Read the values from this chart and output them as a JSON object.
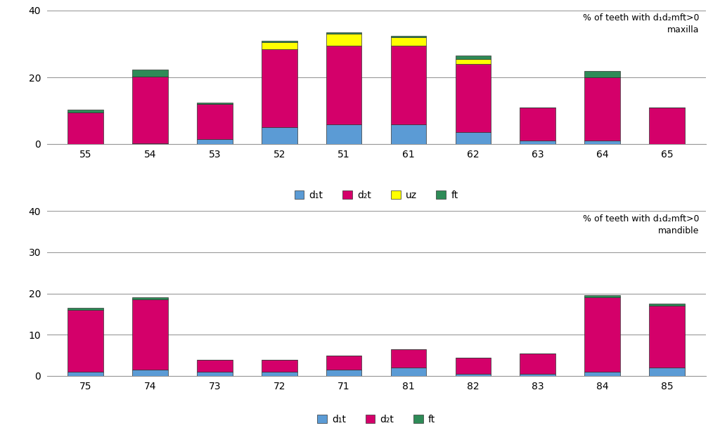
{
  "top": {
    "categories": [
      "55",
      "54",
      "53",
      "52",
      "51",
      "61",
      "62",
      "63",
      "64",
      "65"
    ],
    "d1t": [
      0.0,
      0.3,
      1.5,
      5.0,
      6.0,
      6.0,
      3.5,
      1.0,
      1.0,
      0.0
    ],
    "d2t": [
      9.5,
      20.0,
      10.5,
      23.5,
      23.5,
      23.5,
      20.5,
      10.0,
      19.0,
      11.0
    ],
    "uz": [
      0.0,
      0.0,
      0.0,
      2.0,
      3.5,
      2.5,
      1.5,
      0.0,
      0.0,
      0.0
    ],
    "ft": [
      0.8,
      2.0,
      0.5,
      0.5,
      0.5,
      0.5,
      1.0,
      0.0,
      2.0,
      0.0
    ],
    "ylim": [
      0,
      40
    ],
    "yticks": [
      0,
      20,
      40
    ],
    "annotation_line1": "% of teeth with d₁d₂mft>0",
    "annotation_line2": "maxilla",
    "legend": [
      "d₁t",
      "d₂t",
      "uz",
      "ft"
    ],
    "colors": {
      "d1t": "#5b9bd5",
      "d2t": "#d4006a",
      "uz": "#ffff00",
      "ft": "#2e8b57"
    }
  },
  "bottom": {
    "categories": [
      "75",
      "74",
      "73",
      "72",
      "71",
      "81",
      "82",
      "83",
      "84",
      "85"
    ],
    "d1t": [
      1.0,
      1.5,
      1.0,
      1.0,
      1.5,
      2.0,
      0.5,
      0.5,
      1.0,
      2.0
    ],
    "d2t": [
      15.0,
      17.0,
      3.0,
      3.0,
      3.5,
      4.5,
      4.0,
      5.0,
      18.0,
      15.0
    ],
    "ft": [
      0.5,
      0.5,
      0.0,
      0.0,
      0.0,
      0.0,
      0.0,
      0.0,
      0.5,
      0.5
    ],
    "ylim": [
      0,
      40
    ],
    "yticks": [
      0,
      10,
      20,
      30,
      40
    ],
    "annotation_line1": "% of teeth with d₁d₂mft>0",
    "annotation_line2": "mandible",
    "legend": [
      "d₁t",
      "d₂t",
      "ft"
    ],
    "colors": {
      "d1t": "#5b9bd5",
      "d2t": "#d4006a",
      "ft": "#2e8b57"
    }
  },
  "bar_width": 0.55,
  "figure_bg": "#ffffff",
  "axes_bg": "#ffffff",
  "grid_color": "#999999",
  "text_color": "#000000",
  "edge_color": "#333333"
}
